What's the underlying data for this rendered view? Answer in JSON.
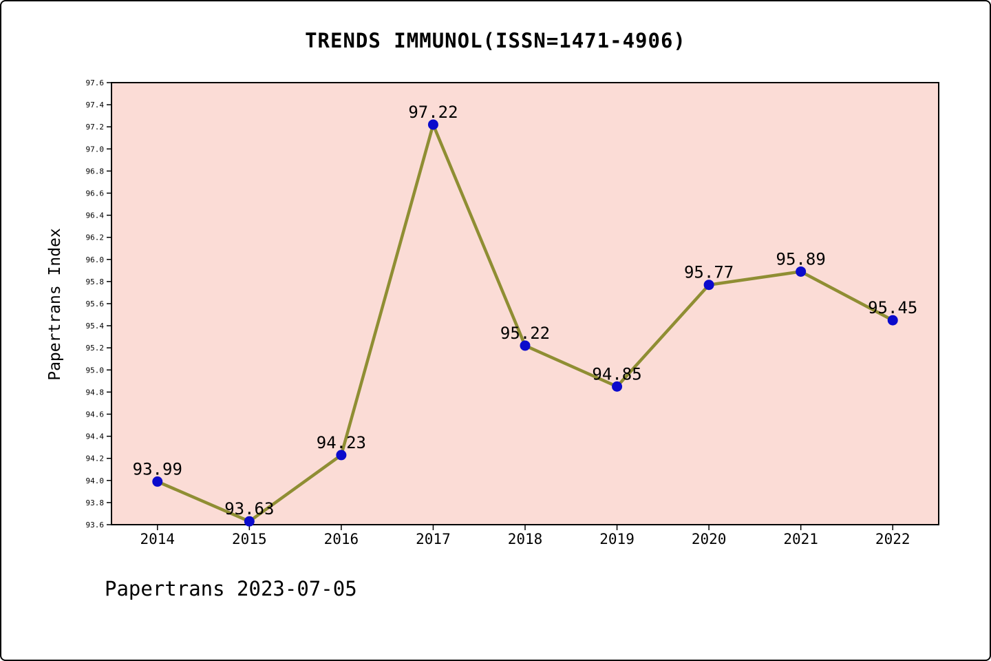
{
  "footer": {
    "text": "Papertrans 2023-07-05"
  },
  "chart_data": {
    "type": "line",
    "title": "TRENDS IMMUNOL(ISSN=1471-4906)",
    "xlabel": "",
    "ylabel": "Papertrans Index",
    "categories": [
      "2014",
      "2015",
      "2016",
      "2017",
      "2018",
      "2019",
      "2020",
      "2021",
      "2022"
    ],
    "series": [
      {
        "name": "Papertrans Index",
        "values": [
          93.99,
          93.63,
          94.23,
          97.22,
          95.22,
          94.85,
          95.77,
          95.89,
          95.45
        ]
      }
    ],
    "point_labels": [
      "93.99",
      "93.63",
      "94.23",
      "97.22",
      "95.22",
      "94.85",
      "95.77",
      "95.89",
      "95.45"
    ],
    "ylim": [
      93.6,
      97.6
    ],
    "ytick_step": 0.2,
    "grid": false,
    "legend": "none",
    "colors": {
      "plot_background": "#fbdcd6",
      "line": "#8f8e33",
      "marker": "#0b0bcc",
      "axis": "#000000",
      "text": "#000000"
    }
  }
}
